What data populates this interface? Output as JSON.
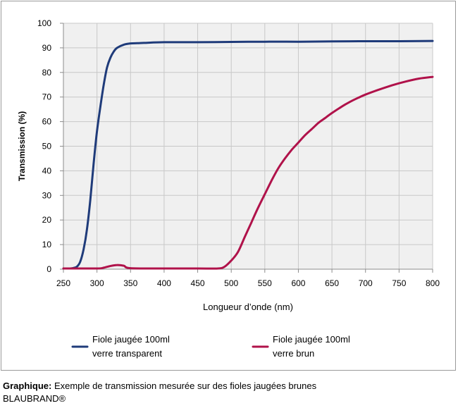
{
  "chart_data": {
    "type": "line",
    "xlabel": "Longueur d’onde (nm)",
    "ylabel": "Transmission (%)",
    "xlim": [
      250,
      800
    ],
    "ylim": [
      0,
      100
    ],
    "x_ticks": [
      250,
      300,
      350,
      400,
      450,
      500,
      550,
      600,
      650,
      700,
      750,
      800
    ],
    "y_ticks": [
      0,
      10,
      20,
      30,
      40,
      50,
      60,
      70,
      80,
      90,
      100
    ],
    "grid": "vertical",
    "plot_background": "#f0f0f0",
    "legend_position": "bottom",
    "series": [
      {
        "name_line1": "Fiole jaugée 100ml",
        "name_line2": "verre transparent",
        "color": "#1f3b7a",
        "points": [
          [
            250,
            0.3
          ],
          [
            260,
            0.3
          ],
          [
            265,
            0.5
          ],
          [
            270,
            1
          ],
          [
            275,
            3
          ],
          [
            280,
            8
          ],
          [
            285,
            16
          ],
          [
            290,
            28
          ],
          [
            295,
            43
          ],
          [
            300,
            56
          ],
          [
            305,
            66
          ],
          [
            310,
            75
          ],
          [
            315,
            82
          ],
          [
            320,
            86
          ],
          [
            325,
            88.5
          ],
          [
            330,
            90
          ],
          [
            340,
            91.3
          ],
          [
            350,
            91.8
          ],
          [
            360,
            91.9
          ],
          [
            370,
            92
          ],
          [
            400,
            92.3
          ],
          [
            450,
            92.3
          ],
          [
            500,
            92.4
          ],
          [
            550,
            92.5
          ],
          [
            600,
            92.5
          ],
          [
            650,
            92.6
          ],
          [
            700,
            92.7
          ],
          [
            750,
            92.7
          ],
          [
            800,
            92.8
          ]
        ]
      },
      {
        "name_line1": "Fiole jaugée 100ml",
        "name_line2": "verre brun",
        "color": "#b0124a",
        "points": [
          [
            250,
            0.3
          ],
          [
            300,
            0.3
          ],
          [
            310,
            0.6
          ],
          [
            320,
            1.3
          ],
          [
            330,
            1.7
          ],
          [
            340,
            1.4
          ],
          [
            350,
            0.4
          ],
          [
            400,
            0.3
          ],
          [
            450,
            0.3
          ],
          [
            480,
            0.3
          ],
          [
            490,
            1
          ],
          [
            500,
            3.5
          ],
          [
            510,
            7
          ],
          [
            520,
            13
          ],
          [
            530,
            19
          ],
          [
            540,
            25
          ],
          [
            550,
            30.5
          ],
          [
            560,
            36
          ],
          [
            570,
            41
          ],
          [
            580,
            45
          ],
          [
            590,
            48.5
          ],
          [
            600,
            51.5
          ],
          [
            610,
            54.5
          ],
          [
            620,
            57
          ],
          [
            630,
            59.5
          ],
          [
            640,
            61.5
          ],
          [
            650,
            63.5
          ],
          [
            660,
            65.3
          ],
          [
            670,
            67
          ],
          [
            680,
            68.5
          ],
          [
            690,
            69.8
          ],
          [
            700,
            71
          ],
          [
            720,
            73
          ],
          [
            740,
            74.8
          ],
          [
            760,
            76.3
          ],
          [
            780,
            77.5
          ],
          [
            800,
            78.2
          ]
        ]
      }
    ]
  },
  "caption": {
    "label": "Graphique:",
    "text": " Exemple  de transmission mesurée sur des fioles jaugées brunes",
    "line2": "BLAUBRAND®"
  }
}
